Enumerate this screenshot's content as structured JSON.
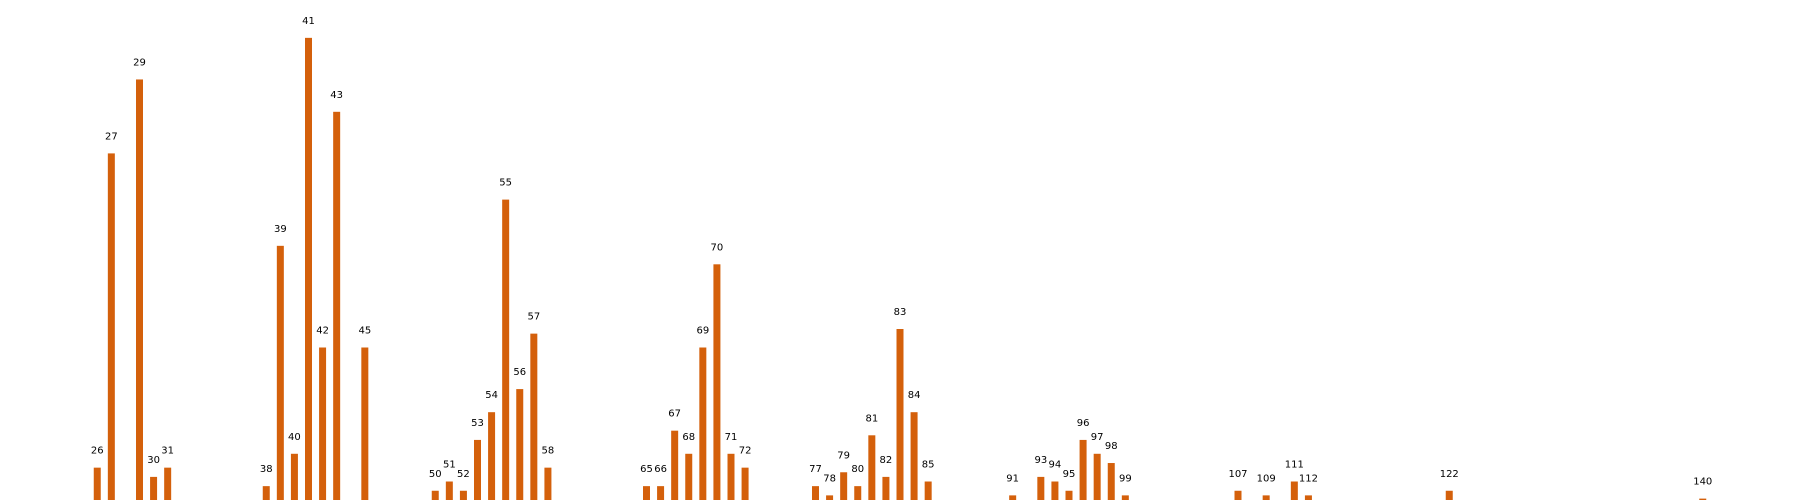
{
  "chart_data": {
    "type": "bar",
    "title": "",
    "xlabel": "",
    "ylabel": "",
    "color": "#d4600b",
    "grid": false,
    "ylim": [
      0,
      103
    ],
    "xlim": [
      23,
      143
    ],
    "categories": [
      "26",
      "27",
      "29",
      "30",
      "31",
      "38",
      "39",
      "40",
      "41",
      "42",
      "43",
      "45",
      "50",
      "51",
      "52",
      "53",
      "54",
      "55",
      "56",
      "57",
      "58",
      "65",
      "66",
      "67",
      "68",
      "69",
      "70",
      "71",
      "72",
      "77",
      "78",
      "79",
      "80",
      "81",
      "82",
      "83",
      "84",
      "85",
      "91",
      "93",
      "94",
      "95",
      "96",
      "97",
      "98",
      "99",
      "107",
      "109",
      "111",
      "112",
      "122",
      "140"
    ],
    "values": [
      7,
      75,
      91,
      5,
      7,
      3,
      55,
      10,
      100,
      33,
      84,
      33,
      2,
      4,
      2,
      13,
      19,
      65,
      24,
      36,
      7,
      3,
      3,
      15,
      10,
      33,
      51,
      10,
      7,
      3,
      1,
      6,
      3,
      14,
      5,
      37,
      19,
      4,
      1,
      5,
      4,
      2,
      13,
      10,
      8,
      1,
      2,
      1,
      4,
      1,
      2,
      0.3
    ]
  }
}
